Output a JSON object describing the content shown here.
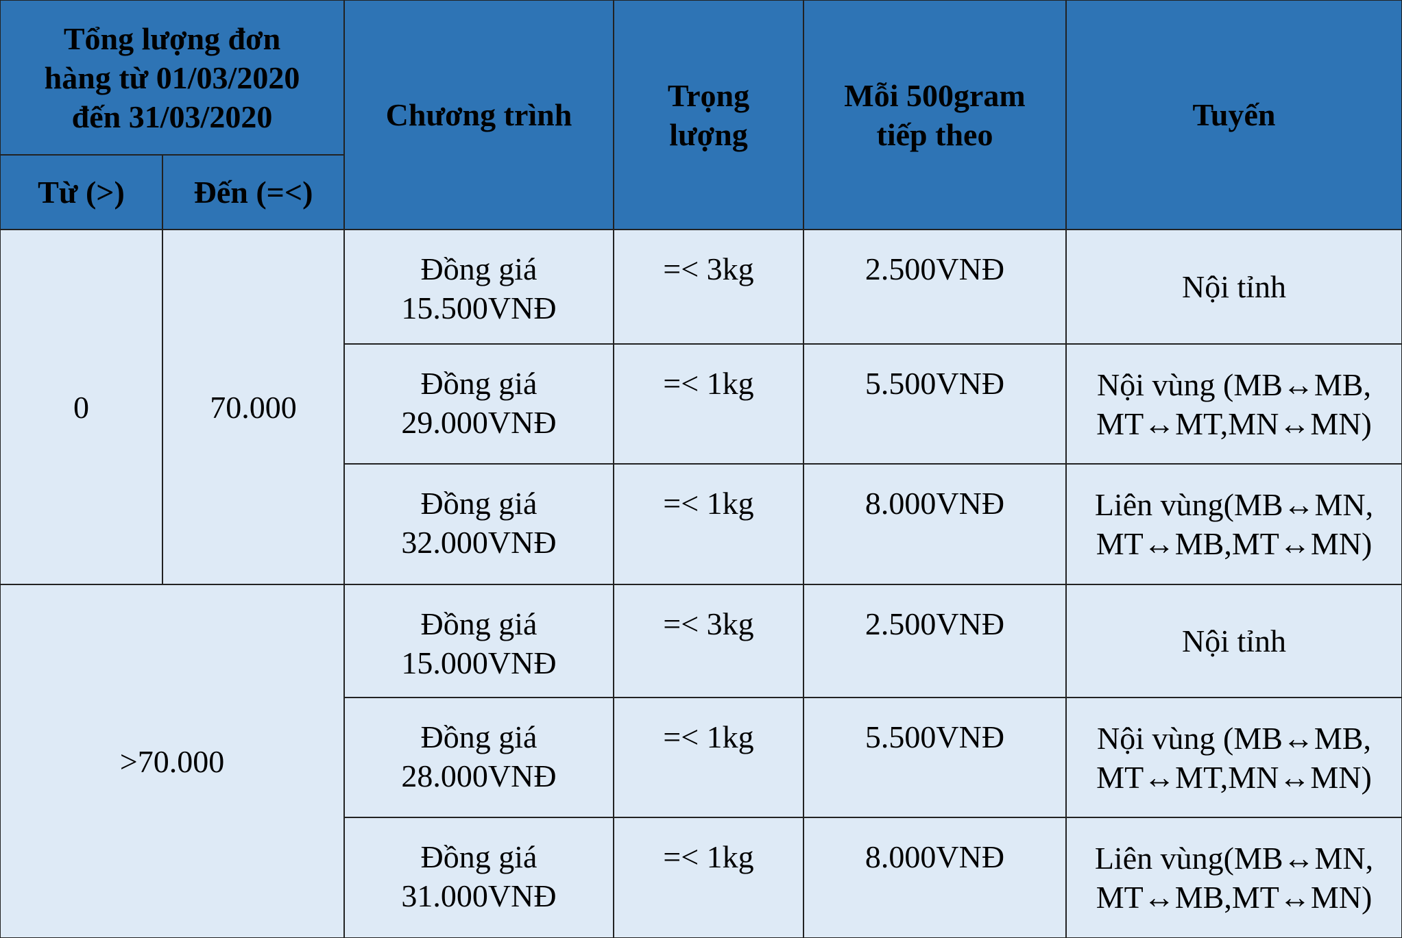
{
  "header": {
    "total": [
      "Tổng lượng đơn",
      "hàng từ 01/03/2020",
      "đến 31/03/2020"
    ],
    "from": "Từ (>)",
    "to": "Đến (=<)",
    "program": "Chương trình",
    "weight": [
      "Trọng",
      "lượng"
    ],
    "next": [
      "Mỗi 500gram",
      "tiếp theo"
    ],
    "route": "Tuyến"
  },
  "groups": [
    {
      "from": "0",
      "to": "70.000",
      "rows": [
        {
          "program": [
            "Đồng giá",
            "15.500VNĐ"
          ],
          "weight": "=< 3kg",
          "next": "2.500VNĐ",
          "route": [
            "Nội tỉnh"
          ]
        },
        {
          "program": [
            "Đồng giá",
            "29.000VNĐ"
          ],
          "weight": "=< 1kg",
          "next": "5.500VNĐ",
          "route": [
            "Nội vùng (MB↔MB,",
            "MT↔MT,MN↔MN)"
          ]
        },
        {
          "program": [
            "Đồng giá",
            "32.000VNĐ"
          ],
          "weight": "=< 1kg",
          "next": "8.000VNĐ",
          "route": [
            "Liên vùng(MB↔MN,",
            "MT↔MB,MT↔MN)"
          ]
        }
      ]
    },
    {
      "range": ">70.000",
      "rows": [
        {
          "program": [
            "Đồng giá",
            "15.000VNĐ"
          ],
          "weight": "=< 3kg",
          "next": "2.500VNĐ",
          "route": [
            "Nội tỉnh"
          ]
        },
        {
          "program": [
            "Đồng giá",
            "28.000VNĐ"
          ],
          "weight": "=< 1kg",
          "next": "5.500VNĐ",
          "route": [
            "Nội vùng (MB↔MB,",
            "MT↔MT,MN↔MN)"
          ]
        },
        {
          "program": [
            "Đồng giá",
            "31.000VNĐ"
          ],
          "weight": "=< 1kg",
          "next": "8.000VNĐ",
          "route": [
            "Liên vùng(MB↔MN,",
            "MT↔MB,MT↔MN)"
          ]
        }
      ]
    }
  ]
}
